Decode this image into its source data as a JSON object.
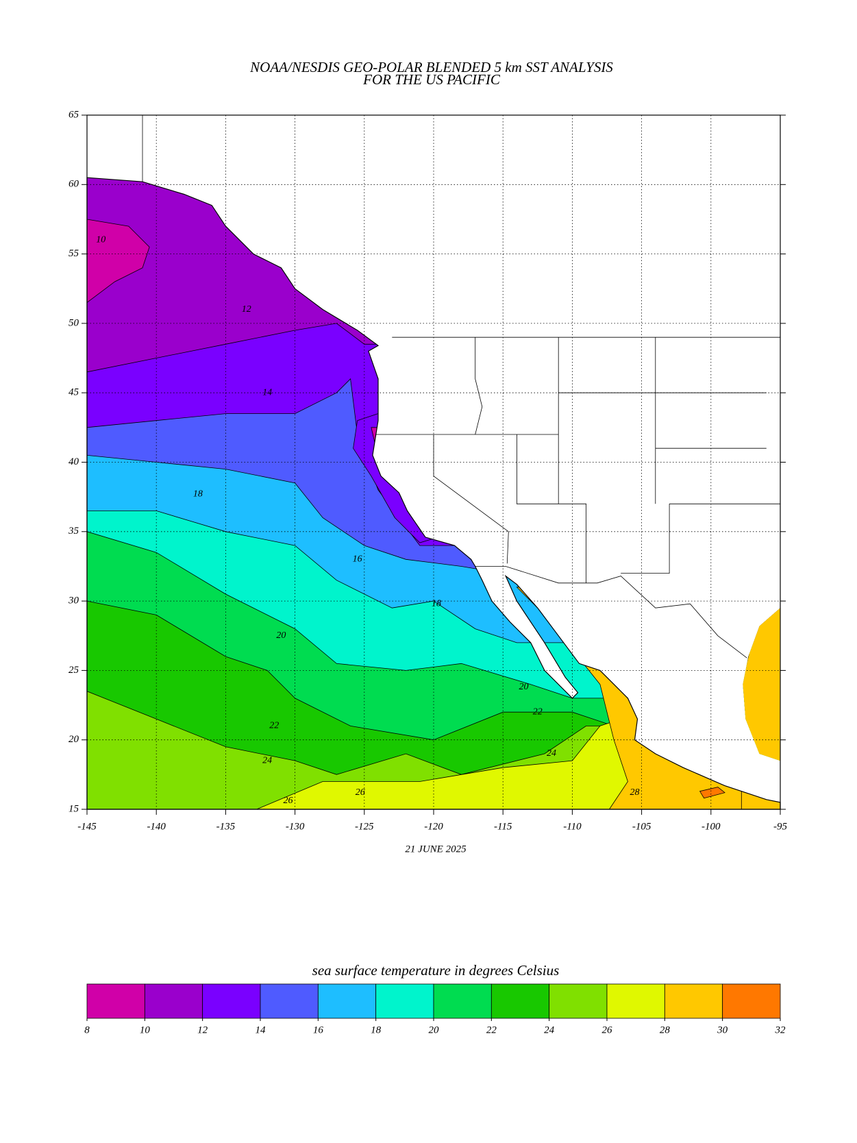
{
  "header": {
    "title_line1": "NOAA/NESDIS GEO-POLAR BLENDED 5 km SST ANALYSIS",
    "title_line2": "FOR THE US PACIFIC"
  },
  "map": {
    "lonlim": [
      -145,
      -95
    ],
    "latlim": [
      15,
      65
    ],
    "lonticks": [
      -145,
      -140,
      -135,
      -130,
      -125,
      -120,
      -115,
      -110,
      -105,
      -100,
      -95
    ],
    "latticks": [
      15,
      20,
      25,
      30,
      35,
      40,
      45,
      50,
      55,
      60,
      65
    ],
    "date": "21 JUNE 2025",
    "contour_labels": [
      10,
      12,
      14,
      16,
      18,
      18,
      20,
      20,
      22,
      22,
      24,
      24,
      26,
      26,
      28
    ]
  },
  "colorbar": {
    "label": "sea surface temperature in degrees Celsius",
    "ticks": [
      8,
      10,
      12,
      14,
      16,
      18,
      20,
      22,
      24,
      26,
      28,
      30,
      32
    ],
    "colors": [
      "#d000a8",
      "#9a00cc",
      "#7a00ff",
      "#4f5bff",
      "#1ebeff",
      "#00f4cc",
      "#00dc50",
      "#18c800",
      "#80e000",
      "#e0f800",
      "#ffc800",
      "#ff7800"
    ]
  }
}
